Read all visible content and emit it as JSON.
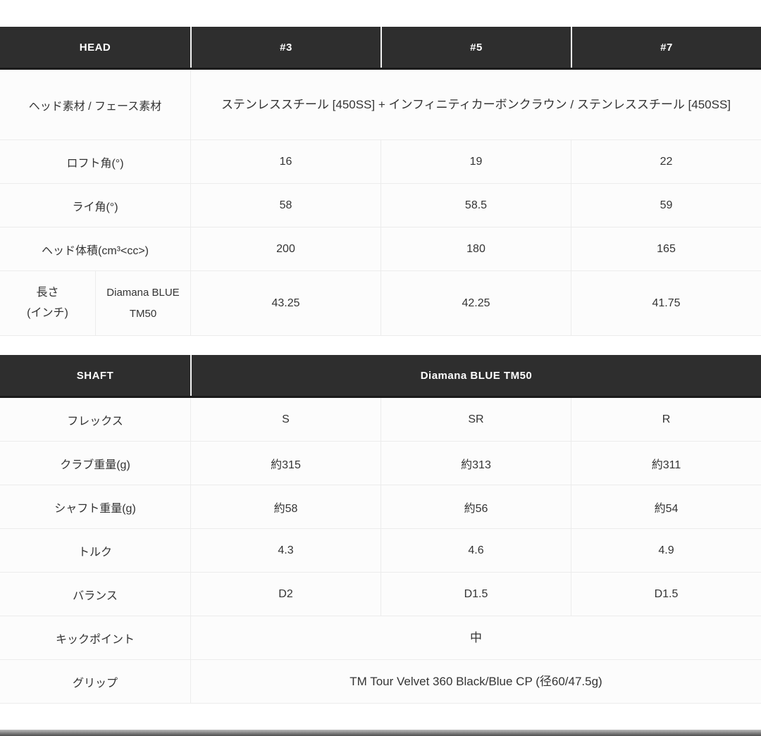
{
  "colors": {
    "header_bg": "#2e2e2e",
    "header_text": "#ffffff",
    "body_text": "#333333",
    "divider": "#ececec"
  },
  "head_table": {
    "header": [
      "HEAD",
      "#3",
      "#5",
      "#7"
    ],
    "material_row": {
      "label": "ヘッド素材 / フェース素材",
      "span_value": "ステンレススチール [450SS] + インフィニティカーボンクラウン / ステンレススチール [450SS]"
    },
    "loft_row": {
      "label": "ロフト角(°)",
      "values": [
        "16",
        "19",
        "22"
      ]
    },
    "lie_row": {
      "label": "ライ角(°)",
      "values": [
        "58",
        "58.5",
        "59"
      ]
    },
    "volume_row": {
      "label": "ヘッド体積(cm³<cc>)",
      "values": [
        "200",
        "180",
        "165"
      ]
    },
    "length_row": {
      "label": "長さ\n(インチ)",
      "sublabel": "Diamana BLUE TM50",
      "values": [
        "43.25",
        "42.25",
        "41.75"
      ]
    }
  },
  "shaft_table": {
    "header_label": "SHAFT",
    "header_span": "Diamana BLUE TM50",
    "flex_row": {
      "label": "フレックス",
      "values": [
        "S",
        "SR",
        "R"
      ]
    },
    "club_weight_row": {
      "label": "クラブ重量(g)",
      "values": [
        "約315",
        "約313",
        "約311"
      ]
    },
    "shaft_weight_row": {
      "label": "シャフト重量(g)",
      "values": [
        "約58",
        "約56",
        "約54"
      ]
    },
    "torque_row": {
      "label": "トルク",
      "values": [
        "4.3",
        "4.6",
        "4.9"
      ]
    },
    "balance_row": {
      "label": "バランス",
      "values": [
        "D2",
        "D1.5",
        "D1.5"
      ]
    },
    "kickpoint_row": {
      "label": "キックポイント",
      "span_value": "中"
    },
    "grip_row": {
      "label": "グリップ",
      "span_value": "TM Tour Velvet 360 Black/Blue CP (径60/47.5g)"
    }
  }
}
